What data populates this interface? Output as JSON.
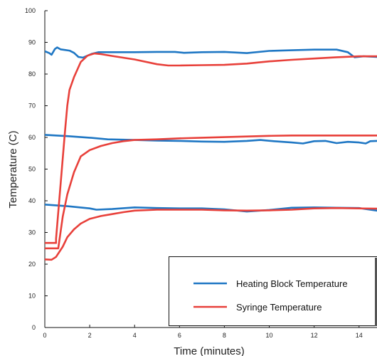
{
  "chart_data": {
    "type": "line",
    "title": "",
    "xlabel": "Time (minutes)",
    "ylabel": "Temperature (C)",
    "xlim": [
      0,
      14.8
    ],
    "ylim": [
      0,
      100
    ],
    "x_ticks": [
      0,
      2,
      4,
      6,
      8,
      10,
      12,
      14
    ],
    "y_ticks": [
      0,
      10,
      20,
      30,
      40,
      50,
      60,
      70,
      80,
      90,
      100
    ],
    "grid": false,
    "legend_position": "bottom-right",
    "legend": [
      {
        "name": "Heating Block Temperature",
        "color": "#1f77c4"
      },
      {
        "name": "Syringe Temperature",
        "color": "#e8403a"
      }
    ],
    "series": [
      {
        "name": "Heating Block Temperature",
        "color": "#1f77c4",
        "points": [
          [
            0,
            87.2
          ],
          [
            0.2,
            86.6
          ],
          [
            0.3,
            86.1
          ],
          [
            0.45,
            87.9
          ],
          [
            0.55,
            88.4
          ],
          [
            0.7,
            87.8
          ],
          [
            0.9,
            87.6
          ],
          [
            1.1,
            87.4
          ],
          [
            1.3,
            86.7
          ],
          [
            1.5,
            85.4
          ],
          [
            1.7,
            85.2
          ],
          [
            1.9,
            85.8
          ],
          [
            2.1,
            86.4
          ],
          [
            2.4,
            86.9
          ],
          [
            3,
            86.9
          ],
          [
            4,
            86.9
          ],
          [
            5,
            87
          ],
          [
            5.8,
            87
          ],
          [
            6.2,
            86.7
          ],
          [
            7,
            86.9
          ],
          [
            8,
            87
          ],
          [
            9,
            86.6
          ],
          [
            10,
            87.3
          ],
          [
            11,
            87.5
          ],
          [
            12,
            87.7
          ],
          [
            13,
            87.7
          ],
          [
            13.5,
            86.9
          ],
          [
            13.8,
            85.3
          ],
          [
            14.2,
            85.6
          ],
          [
            14.8,
            85.4
          ]
        ]
      },
      {
        "name": "Heating Block Temperature",
        "color": "#1f77c4",
        "points": [
          [
            0,
            60.8
          ],
          [
            1,
            60.4
          ],
          [
            2,
            59.9
          ],
          [
            2.8,
            59.4
          ],
          [
            4,
            59.2
          ],
          [
            5,
            59
          ],
          [
            6,
            58.9
          ],
          [
            7,
            58.7
          ],
          [
            8,
            58.6
          ],
          [
            9,
            58.9
          ],
          [
            9.6,
            59.2
          ],
          [
            10.2,
            58.8
          ],
          [
            11,
            58.4
          ],
          [
            11.5,
            58.1
          ],
          [
            12,
            58.8
          ],
          [
            12.5,
            58.9
          ],
          [
            13,
            58.2
          ],
          [
            13.5,
            58.6
          ],
          [
            14,
            58.4
          ],
          [
            14.3,
            58.1
          ],
          [
            14.5,
            58.8
          ],
          [
            14.8,
            58.9
          ]
        ]
      },
      {
        "name": "Heating Block Temperature",
        "color": "#1f77c4",
        "points": [
          [
            0,
            38.8
          ],
          [
            1,
            38.3
          ],
          [
            2,
            37.6
          ],
          [
            2.3,
            37.2
          ],
          [
            3,
            37.4
          ],
          [
            4,
            37.9
          ],
          [
            5,
            37.7
          ],
          [
            6,
            37.6
          ],
          [
            7,
            37.6
          ],
          [
            8,
            37.3
          ],
          [
            9,
            36.6
          ],
          [
            10,
            37.1
          ],
          [
            11,
            37.8
          ],
          [
            12,
            37.9
          ],
          [
            13,
            37.8
          ],
          [
            14,
            37.7
          ],
          [
            14.8,
            36.9
          ]
        ]
      },
      {
        "name": "Syringe Temperature",
        "color": "#e8403a",
        "points": [
          [
            0,
            26.7
          ],
          [
            0.5,
            26.7
          ],
          [
            0.5,
            28
          ],
          [
            0.7,
            45
          ],
          [
            0.9,
            62
          ],
          [
            1,
            70
          ],
          [
            1.1,
            75
          ],
          [
            1.3,
            79
          ],
          [
            1.6,
            83.8
          ],
          [
            1.9,
            85.8
          ],
          [
            2.2,
            86.5
          ],
          [
            2.5,
            86.3
          ],
          [
            3,
            85.7
          ],
          [
            4,
            84.6
          ],
          [
            5,
            83.1
          ],
          [
            5.5,
            82.7
          ],
          [
            6,
            82.7
          ],
          [
            7,
            82.8
          ],
          [
            8,
            82.9
          ],
          [
            9,
            83.3
          ],
          [
            10,
            84
          ],
          [
            11,
            84.5
          ],
          [
            12,
            84.9
          ],
          [
            13,
            85.3
          ],
          [
            14,
            85.6
          ],
          [
            14.8,
            85.6
          ]
        ]
      },
      {
        "name": "Syringe Temperature",
        "color": "#e8403a",
        "points": [
          [
            0,
            25
          ],
          [
            0.6,
            25
          ],
          [
            0.8,
            35
          ],
          [
            1,
            42
          ],
          [
            1.3,
            49
          ],
          [
            1.6,
            54
          ],
          [
            2,
            56
          ],
          [
            2.5,
            57.3
          ],
          [
            3,
            58.2
          ],
          [
            3.5,
            58.8
          ],
          [
            4,
            59.2
          ],
          [
            5,
            59.4
          ],
          [
            6,
            59.7
          ],
          [
            7,
            59.9
          ],
          [
            8,
            60.1
          ],
          [
            9,
            60.3
          ],
          [
            10,
            60.5
          ],
          [
            11,
            60.6
          ],
          [
            12,
            60.6
          ],
          [
            13,
            60.6
          ],
          [
            14,
            60.6
          ],
          [
            14.8,
            60.6
          ]
        ]
      },
      {
        "name": "Syringe Temperature",
        "color": "#e8403a",
        "points": [
          [
            0,
            21.5
          ],
          [
            0.3,
            21.4
          ],
          [
            0.5,
            22.3
          ],
          [
            0.8,
            25.5
          ],
          [
            1,
            28.5
          ],
          [
            1.3,
            31
          ],
          [
            1.6,
            32.8
          ],
          [
            2,
            34.3
          ],
          [
            2.5,
            35.2
          ],
          [
            3,
            35.8
          ],
          [
            3.5,
            36.4
          ],
          [
            4,
            36.9
          ],
          [
            5,
            37.2
          ],
          [
            6,
            37.2
          ],
          [
            7,
            37.2
          ],
          [
            8,
            37
          ],
          [
            9,
            36.9
          ],
          [
            10,
            37
          ],
          [
            11,
            37.2
          ],
          [
            12,
            37.6
          ],
          [
            13,
            37.7
          ],
          [
            14,
            37.6
          ],
          [
            14.8,
            37.5
          ]
        ]
      }
    ]
  }
}
